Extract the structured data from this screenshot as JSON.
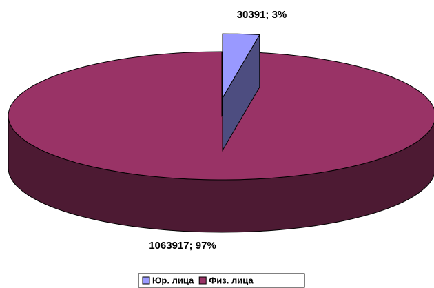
{
  "chart_data": {
    "type": "pie3d",
    "categories": [
      "Юр. лица",
      "Физ. лица"
    ],
    "series": [
      {
        "values": [
          30391,
          1063917
        ],
        "value_labels": [
          "30391; 3%",
          "1063917; 97%"
        ],
        "colors": [
          "#9999ff",
          "#993366"
        ]
      }
    ],
    "explode": [
      true,
      false
    ],
    "legend": "bottom"
  }
}
